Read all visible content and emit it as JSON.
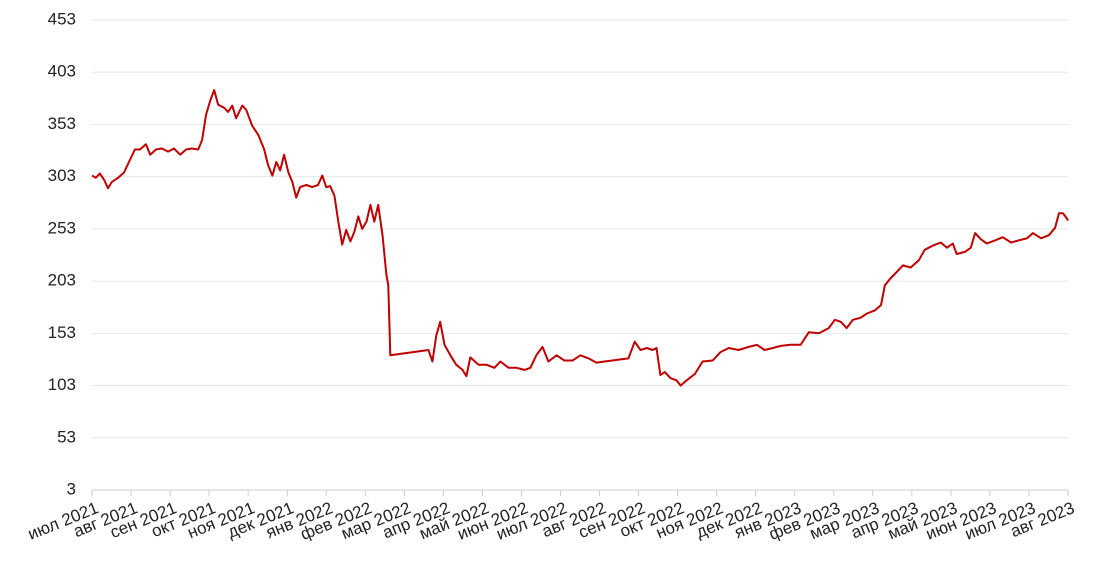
{
  "chart_data": {
    "type": "line",
    "x": [
      0,
      0.1,
      0.2,
      0.31,
      0.41,
      0.51,
      0.67,
      0.82,
      0.97,
      1.1,
      1.23,
      1.38,
      1.49,
      1.64,
      1.79,
      1.95,
      2.1,
      2.26,
      2.41,
      2.56,
      2.72,
      2.82,
      2.92,
      3.03,
      3.13,
      3.23,
      3.38,
      3.49,
      3.59,
      3.69,
      3.85,
      3.95,
      4.1,
      4.26,
      4.41,
      4.51,
      4.62,
      4.72,
      4.82,
      4.92,
      5.03,
      5.13,
      5.23,
      5.33,
      5.49,
      5.64,
      5.79,
      5.9,
      6.0,
      6.1,
      6.21,
      6.31,
      6.41,
      6.51,
      6.62,
      6.72,
      6.82,
      6.92,
      7.03,
      7.13,
      7.23,
      7.33,
      7.44,
      7.54,
      7.59,
      7.64,
      8.62,
      8.72,
      8.82,
      8.92,
      9.03,
      9.18,
      9.33,
      9.49,
      9.59,
      9.69,
      9.9,
      10.1,
      10.31,
      10.46,
      10.67,
      10.87,
      11.08,
      11.23,
      11.38,
      11.54,
      11.69,
      11.9,
      12.1,
      12.31,
      12.51,
      12.72,
      12.92,
      13.13,
      13.33,
      13.54,
      13.74,
      13.9,
      14.05,
      14.21,
      14.36,
      14.46,
      14.56,
      14.67,
      14.82,
      14.97,
      15.08,
      15.23,
      15.44,
      15.64,
      15.9,
      16.1,
      16.31,
      16.56,
      16.82,
      17.03,
      17.23,
      17.44,
      17.64,
      17.9,
      18.15,
      18.36,
      18.62,
      18.87,
      19.03,
      19.18,
      19.33,
      19.49,
      19.69,
      19.85,
      20.05,
      20.21,
      20.31,
      20.46,
      20.62,
      20.77,
      20.97,
      21.18,
      21.33,
      21.54,
      21.74,
      21.9,
      22.05,
      22.15,
      22.36,
      22.51,
      22.62,
      22.77,
      22.92,
      23.13,
      23.33,
      23.54,
      23.74,
      23.95,
      24.1,
      24.31,
      24.51,
      24.67,
      24.77,
      24.87,
      24.97,
      25.0
    ],
    "values": [
      304,
      302,
      306,
      300,
      292,
      298,
      302,
      307,
      319,
      329,
      329,
      334,
      324,
      329,
      330,
      327,
      330,
      324,
      329,
      330,
      329,
      338,
      362,
      376,
      386,
      372,
      369,
      365,
      371,
      359,
      371,
      367,
      352,
      343,
      329,
      314,
      304,
      317,
      309,
      324,
      307,
      298,
      283,
      293,
      295,
      293,
      295,
      304,
      293,
      294,
      285,
      260,
      238,
      252,
      241,
      250,
      265,
      253,
      260,
      276,
      260,
      276,
      247,
      209,
      199,
      132,
      137,
      126,
      151,
      164,
      142,
      132,
      123,
      118,
      112,
      130,
      123,
      123,
      120,
      126,
      120,
      120,
      118,
      120,
      132,
      140,
      126,
      132,
      127,
      127,
      132,
      129,
      125,
      126,
      127,
      128,
      129,
      145,
      137,
      139,
      137,
      139,
      113,
      116,
      110,
      108,
      103,
      108,
      114,
      126,
      127,
      135,
      139,
      137,
      140,
      142,
      137,
      139,
      141,
      142,
      142,
      154,
      153,
      158,
      166,
      164,
      158,
      166,
      168,
      172,
      175,
      180,
      199,
      206,
      212,
      218,
      216,
      223,
      233,
      237,
      240,
      235,
      239,
      229,
      231,
      235,
      249,
      243,
      239,
      242,
      245,
      240,
      242,
      244,
      249,
      244,
      247,
      254,
      268,
      268,
      263,
      261
    ],
    "color": "#c00000",
    "xlim": [
      0,
      25
    ],
    "xticks": [
      {
        "value": 0,
        "label": "июл 2021"
      },
      {
        "value": 1,
        "label": "авг 2021"
      },
      {
        "value": 2,
        "label": "сен 2021"
      },
      {
        "value": 3,
        "label": "окт 2021"
      },
      {
        "value": 4,
        "label": "ноя 2021"
      },
      {
        "value": 5,
        "label": "дек 2021"
      },
      {
        "value": 6,
        "label": "янв 2022"
      },
      {
        "value": 7,
        "label": "фев 2022"
      },
      {
        "value": 8,
        "label": "мар 2022"
      },
      {
        "value": 9,
        "label": "апр 2022"
      },
      {
        "value": 10,
        "label": "май 2022"
      },
      {
        "value": 11,
        "label": "июн 2022"
      },
      {
        "value": 12,
        "label": "июл 2022"
      },
      {
        "value": 13,
        "label": "авг 2022"
      },
      {
        "value": 14,
        "label": "сен 2022"
      },
      {
        "value": 15,
        "label": "окт 2022"
      },
      {
        "value": 16,
        "label": "ноя 2022"
      },
      {
        "value": 17,
        "label": "дек 2022"
      },
      {
        "value": 18,
        "label": "янв 2023"
      },
      {
        "value": 19,
        "label": "фев 2023"
      },
      {
        "value": 20,
        "label": "мар 2023"
      },
      {
        "value": 21,
        "label": "апр 2023"
      },
      {
        "value": 22,
        "label": "май 2023"
      },
      {
        "value": 23,
        "label": "июн 2023"
      },
      {
        "value": 24,
        "label": "июл 2023"
      },
      {
        "value": 25,
        "label": "авг 2023"
      }
    ],
    "ylim": [
      3,
      453
    ],
    "yticks": [
      3,
      53,
      103,
      153,
      203,
      253,
      303,
      353,
      403,
      453
    ],
    "grid": true
  }
}
